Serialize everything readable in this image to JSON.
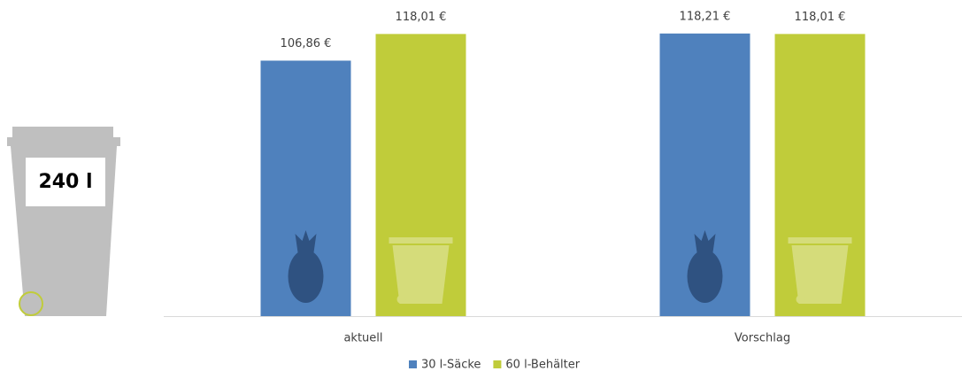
{
  "chart_data": {
    "type": "bar",
    "annotations": [
      "240 l"
    ],
    "categories": [
      "aktuell",
      "Vorschlag"
    ],
    "series": [
      {
        "name": "30 l-Säcke",
        "color": "#4f81bd",
        "values": [
          106.86,
          118.21
        ],
        "value_labels": [
          "106,86 €",
          "118,21 €"
        ]
      },
      {
        "name": "60 l-Behälter",
        "color": "#c0cc3a",
        "values": [
          118.01,
          118.01
        ],
        "value_labels": [
          "118,01 €",
          "118,01 €"
        ]
      }
    ],
    "ylim": [
      0,
      120
    ]
  }
}
